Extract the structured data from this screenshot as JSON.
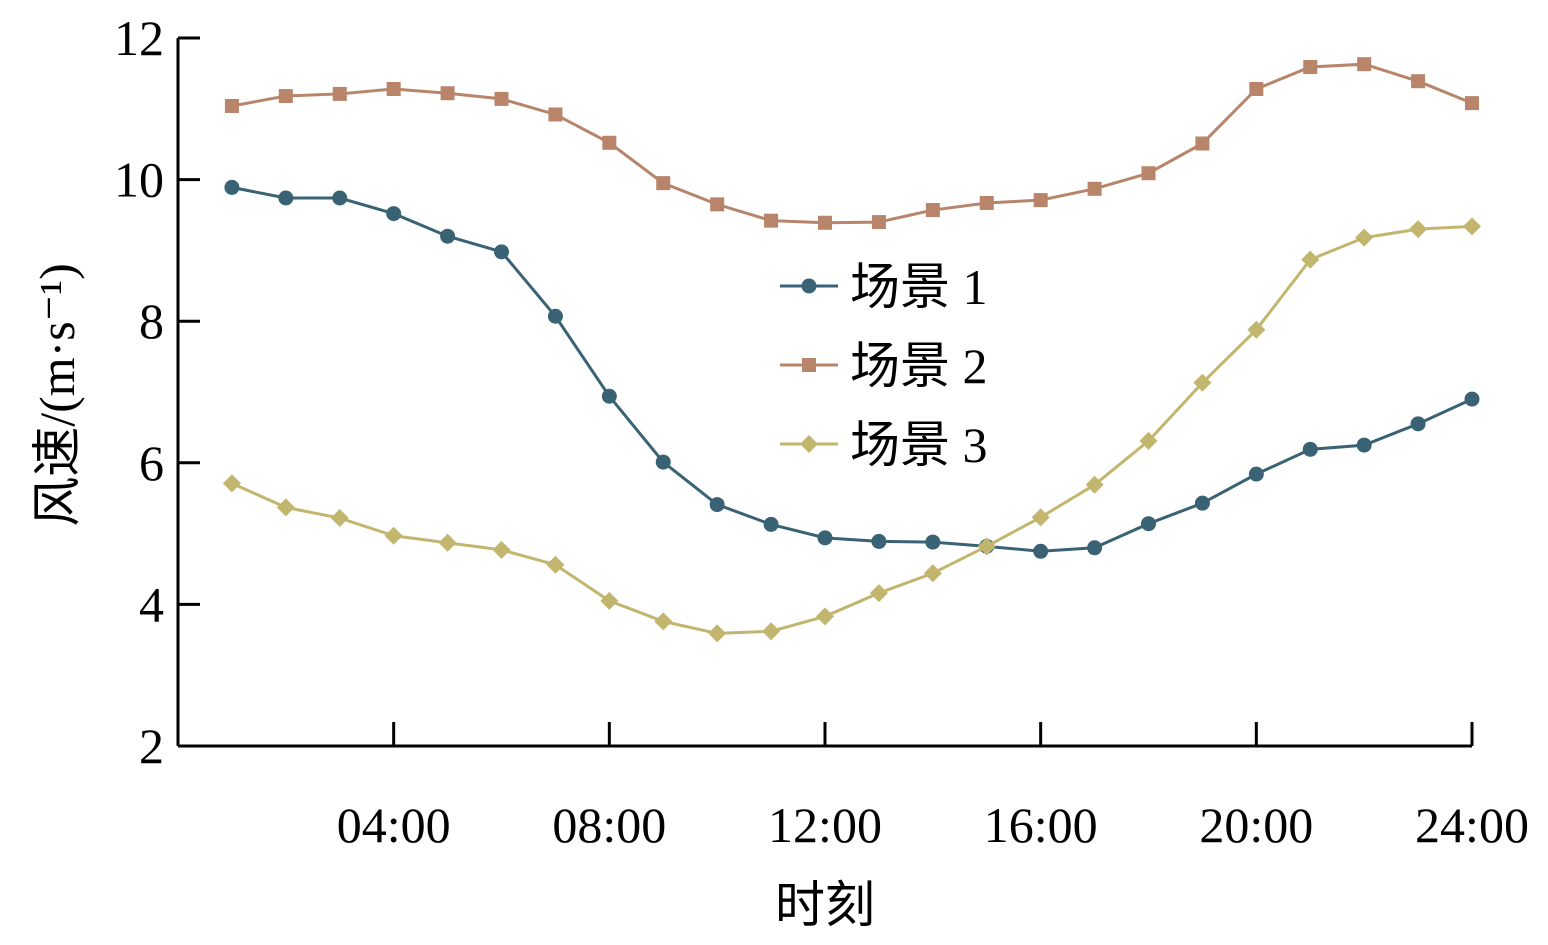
{
  "chart_data": {
    "type": "line",
    "xlabel": "时刻",
    "ylabel": "风速/(m·s⁻¹)",
    "ylim": [
      2,
      12
    ],
    "yticks": [
      2,
      4,
      6,
      8,
      10,
      12
    ],
    "xlim": [
      0,
      24
    ],
    "xticks": [
      {
        "x": 4,
        "label": "04:00"
      },
      {
        "x": 8,
        "label": "08:00"
      },
      {
        "x": 12,
        "label": "12:00"
      },
      {
        "x": 16,
        "label": "16:00"
      },
      {
        "x": 20,
        "label": "20:00"
      },
      {
        "x": 24,
        "label": "24:00"
      }
    ],
    "x": [
      1,
      2,
      3,
      4,
      5,
      6,
      7,
      8,
      9,
      10,
      11,
      12,
      13,
      14,
      15,
      16,
      17,
      18,
      19,
      20,
      21,
      22,
      23,
      24
    ],
    "legend_position": "center",
    "grid": false,
    "series": [
      {
        "name": "场景 1",
        "color": "#3a6275",
        "marker": "circle",
        "values": [
          9.89,
          9.74,
          9.74,
          9.52,
          9.2,
          8.98,
          8.07,
          6.94,
          6.01,
          5.41,
          5.13,
          4.94,
          4.89,
          4.88,
          4.82,
          4.75,
          4.8,
          5.14,
          5.43,
          5.84,
          6.19,
          6.25,
          6.55,
          6.9
        ]
      },
      {
        "name": "场景 2",
        "color": "#b8846a",
        "marker": "square",
        "values": [
          11.04,
          11.18,
          11.21,
          11.28,
          11.22,
          11.14,
          10.92,
          10.52,
          9.95,
          9.65,
          9.42,
          9.39,
          9.4,
          9.57,
          9.67,
          9.71,
          9.87,
          10.09,
          10.51,
          11.28,
          11.59,
          11.63,
          11.39,
          11.08
        ]
      },
      {
        "name": "场景 3",
        "color": "#c2b66e",
        "marker": "diamond",
        "values": [
          5.71,
          5.37,
          5.22,
          4.97,
          4.87,
          4.77,
          4.56,
          4.05,
          3.76,
          3.59,
          3.62,
          3.83,
          4.16,
          4.44,
          4.82,
          5.23,
          5.69,
          6.31,
          7.13,
          7.88,
          8.87,
          9.18,
          9.3,
          9.34
        ]
      }
    ]
  }
}
